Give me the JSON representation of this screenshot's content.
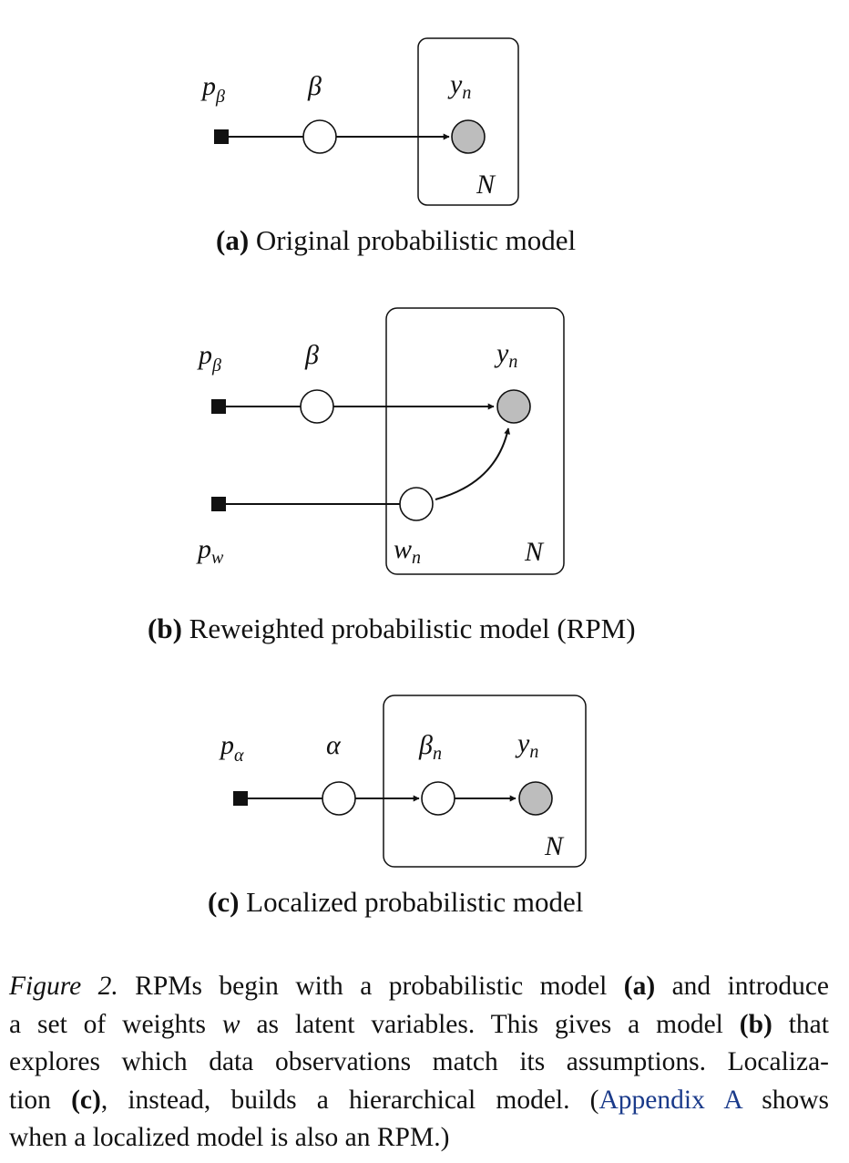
{
  "panel_a": {
    "labels": {
      "prior": "p",
      "prior_sub": "β",
      "global": "β",
      "obs": "y",
      "obs_sub": "n",
      "plate": "N"
    },
    "caption_tag": "(a)",
    "caption_text": "Original probabilistic model"
  },
  "panel_b": {
    "labels": {
      "prior": "p",
      "prior_sub": "β",
      "global": "β",
      "obs": "y",
      "obs_sub": "n",
      "weight_prior": "p",
      "weight_prior_sub": "w",
      "weight": "w",
      "weight_sub": "n",
      "plate": "N"
    },
    "caption_tag": "(b)",
    "caption_text": "Reweighted probabilistic model (",
    "caption_abbrev": "RPM",
    "caption_close": ")"
  },
  "panel_c": {
    "labels": {
      "prior": "p",
      "prior_sub": "α",
      "global": "α",
      "local": "β",
      "local_sub": "n",
      "obs": "y",
      "obs_sub": "n",
      "plate": "N"
    },
    "caption_tag": "(c)",
    "caption_text": "Localized probabilistic model"
  },
  "figure_caption": {
    "label": "Figure 2.",
    "l1_a": " ",
    "l1_rpms": "RPM",
    "l1_b": "s begin with a probabilistic model ",
    "l1_tag": "(a)",
    "l1_c": " and introduce",
    "l2_a": "a set of weights ",
    "l2_w": "w",
    "l2_b": " as latent variables. This gives a model ",
    "l2_tag": "(b)",
    "l2_c": " that",
    "l3": "explores which data observations match its assumptions. Localiza-",
    "l4_a": "tion ",
    "l4_tag": "(c)",
    "l4_b": ", instead, builds a hierarchical model. (",
    "l4_link": "Appendix A",
    "l4_c": " shows",
    "l5_a": "when a localized model is also an ",
    "l5_rpm": "RPM",
    "l5_b": ".)"
  }
}
